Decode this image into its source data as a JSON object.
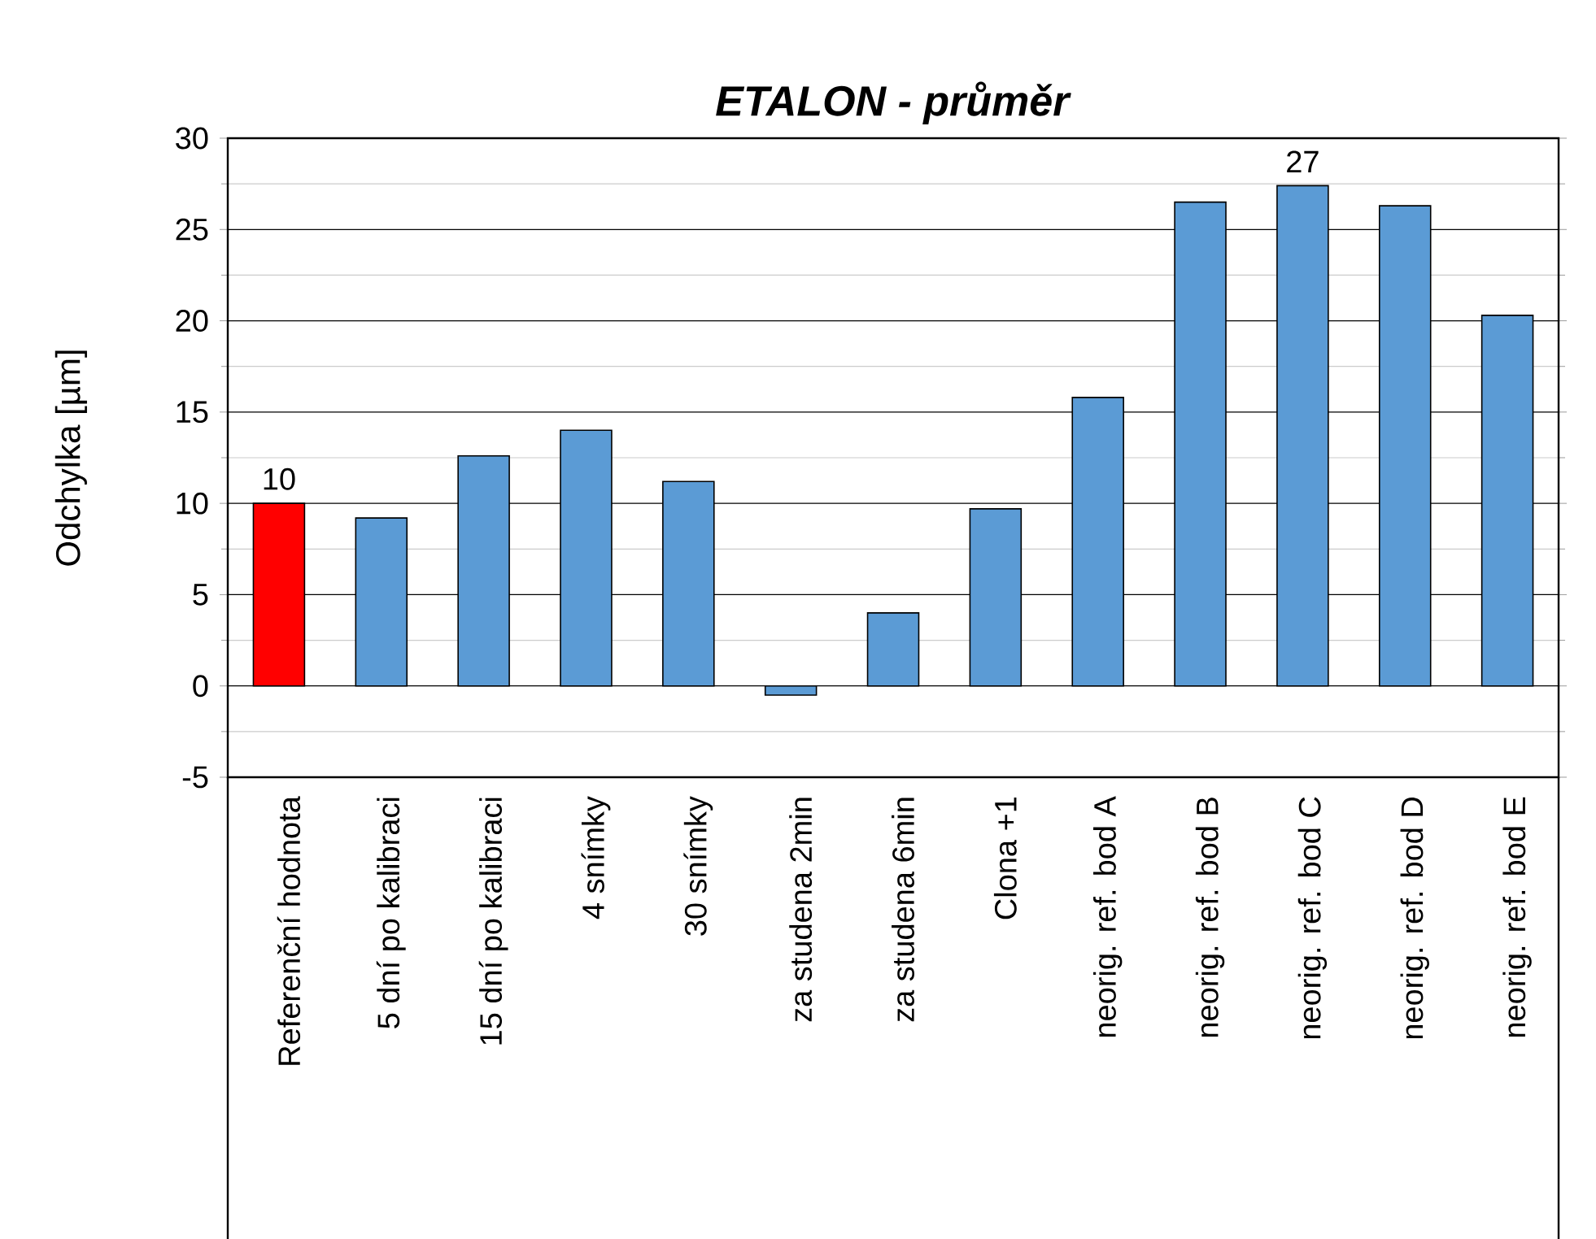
{
  "chart_data": {
    "type": "bar",
    "title": "*ETALON - průměr*",
    "ylabel": "Odchylka [µm]",
    "categories": [
      "Referenční hodnota",
      "5 dní po kalibraci",
      "15 dní po kalibraci",
      "4 snímky",
      "30 snímky",
      "za studena 2min",
      "za studena 6min",
      "Clona +1",
      "neorig. ref. bod A",
      "neorig. ref. bod B",
      "neorig. ref. bod C",
      "neorig. ref. bod D",
      "neorig. ref. bod E"
    ],
    "values": [
      10,
      9.2,
      12.6,
      14.0,
      11.2,
      -0.5,
      4.0,
      9.7,
      15.8,
      26.5,
      27.4,
      26.3,
      20.3
    ],
    "colors": [
      "#ff0000",
      "#5b9bd5",
      "#5b9bd5",
      "#5b9bd5",
      "#5b9bd5",
      "#5b9bd5",
      "#5b9bd5",
      "#5b9bd5",
      "#5b9bd5",
      "#5b9bd5",
      "#5b9bd5",
      "#5b9bd5",
      "#5b9bd5"
    ],
    "value_labels": [
      "10",
      null,
      null,
      null,
      null,
      null,
      null,
      null,
      null,
      null,
      "27",
      null,
      null
    ],
    "ylim": [
      -5,
      30
    ],
    "yticks": [
      -5,
      0,
      5,
      10,
      15,
      20,
      25,
      30
    ],
    "grid": "y"
  }
}
